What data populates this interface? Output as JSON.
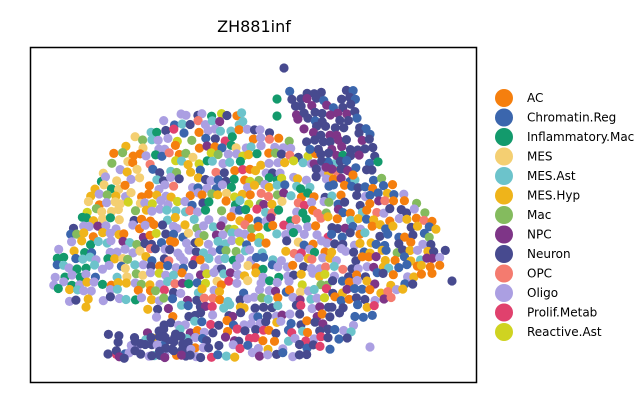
{
  "chart_data": {
    "type": "scatter",
    "title": "ZH881inf",
    "xlabel": "",
    "ylabel": "",
    "grid": false,
    "legend_position": "right",
    "categories": [
      {
        "name": "AC",
        "color": "#f57f0e"
      },
      {
        "name": "Chromatin.Reg",
        "color": "#3b66ad"
      },
      {
        "name": "Inflammatory.Mac",
        "color": "#139a6c"
      },
      {
        "name": "MES",
        "color": "#f4cf72"
      },
      {
        "name": "MES.Ast",
        "color": "#6cc3cb"
      },
      {
        "name": "MES.Hyp",
        "color": "#efb41a"
      },
      {
        "name": "Mac",
        "color": "#84bb5e"
      },
      {
        "name": "NPC",
        "color": "#7e3587"
      },
      {
        "name": "Neuron",
        "color": "#474a8f"
      },
      {
        "name": "OPC",
        "color": "#f47b6f"
      },
      {
        "name": "Oligo",
        "color": "#ab9fe2"
      },
      {
        "name": "Prolif.Metab",
        "color": "#e0416d"
      },
      {
        "name": "Reactive.Ast",
        "color": "#cfd321"
      }
    ]
  }
}
